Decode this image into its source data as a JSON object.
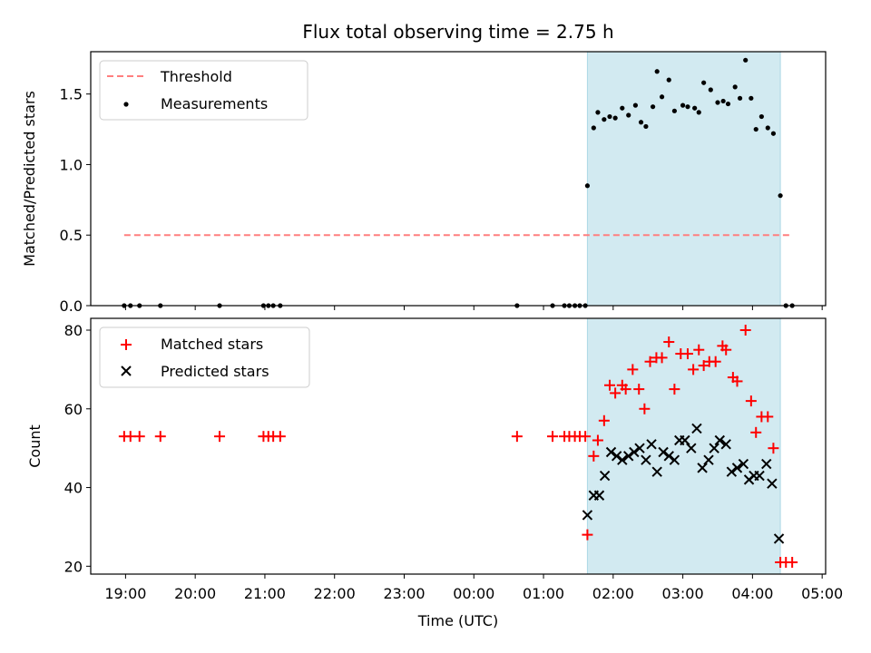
{
  "title": "Flux total observing time = 2.75 h",
  "colors": {
    "threshold": "#ff7f7f",
    "measurement": "#000000",
    "matched": "#ff0000",
    "predicted": "#000000",
    "shade": "#add8e6"
  },
  "chart_data": [
    {
      "type": "scatter",
      "panel": "top",
      "ylabel": "Matched/Predicted stars",
      "xlim_hours": [
        18.5,
        29.05
      ],
      "ylim": [
        0,
        1.8
      ],
      "yticks": [
        {
          "v": 0,
          "label": "0.0"
        },
        {
          "v": 0.5,
          "label": "0.5"
        },
        {
          "v": 1.0,
          "label": "1.0"
        },
        {
          "v": 1.5,
          "label": "1.5"
        }
      ],
      "shaded_x_hours": [
        25.63,
        28.4
      ],
      "threshold": {
        "name": "Threshold",
        "y": 0.5,
        "x_hours": [
          18.98,
          28.57
        ]
      },
      "series": [
        {
          "name": "Measurements",
          "marker": "dot",
          "points": [
            [
              18.98,
              0
            ],
            [
              19.07,
              0
            ],
            [
              19.2,
              0
            ],
            [
              19.5,
              0
            ],
            [
              20.35,
              0
            ],
            [
              20.98,
              0
            ],
            [
              21.05,
              0
            ],
            [
              21.12,
              0
            ],
            [
              21.22,
              0
            ],
            [
              24.62,
              0
            ],
            [
              25.13,
              0
            ],
            [
              25.3,
              0
            ],
            [
              25.37,
              0
            ],
            [
              25.45,
              0
            ],
            [
              25.52,
              0
            ],
            [
              25.6,
              0
            ],
            [
              25.63,
              0.85
            ],
            [
              25.72,
              1.26
            ],
            [
              25.78,
              1.37
            ],
            [
              25.87,
              1.32
            ],
            [
              25.95,
              1.34
            ],
            [
              26.03,
              1.33
            ],
            [
              26.13,
              1.4
            ],
            [
              26.22,
              1.35
            ],
            [
              26.32,
              1.42
            ],
            [
              26.4,
              1.3
            ],
            [
              26.47,
              1.27
            ],
            [
              26.57,
              1.41
            ],
            [
              26.63,
              1.66
            ],
            [
              26.7,
              1.48
            ],
            [
              26.8,
              1.6
            ],
            [
              26.88,
              1.38
            ],
            [
              27.0,
              1.42
            ],
            [
              27.07,
              1.41
            ],
            [
              27.17,
              1.4
            ],
            [
              27.23,
              1.37
            ],
            [
              27.3,
              1.58
            ],
            [
              27.4,
              1.53
            ],
            [
              27.5,
              1.44
            ],
            [
              27.58,
              1.45
            ],
            [
              27.65,
              1.43
            ],
            [
              27.75,
              1.55
            ],
            [
              27.82,
              1.47
            ],
            [
              27.9,
              1.74
            ],
            [
              27.98,
              1.47
            ],
            [
              28.05,
              1.25
            ],
            [
              28.13,
              1.34
            ],
            [
              28.22,
              1.26
            ],
            [
              28.3,
              1.22
            ],
            [
              28.4,
              0.78
            ],
            [
              28.48,
              0
            ],
            [
              28.57,
              0
            ]
          ]
        }
      ]
    },
    {
      "type": "scatter",
      "panel": "bottom",
      "ylabel": "Count",
      "xlabel": "Time (UTC)",
      "xlim_hours": [
        18.5,
        29.05
      ],
      "ylim": [
        18,
        83
      ],
      "yticks": [
        {
          "v": 20,
          "label": "20"
        },
        {
          "v": 40,
          "label": "40"
        },
        {
          "v": 60,
          "label": "60"
        },
        {
          "v": 80,
          "label": "80"
        }
      ],
      "xticks": [
        {
          "v": 19,
          "label": "19:00"
        },
        {
          "v": 20,
          "label": "20:00"
        },
        {
          "v": 21,
          "label": "21:00"
        },
        {
          "v": 22,
          "label": "22:00"
        },
        {
          "v": 23,
          "label": "23:00"
        },
        {
          "v": 24,
          "label": "00:00"
        },
        {
          "v": 25,
          "label": "01:00"
        },
        {
          "v": 26,
          "label": "02:00"
        },
        {
          "v": 27,
          "label": "03:00"
        },
        {
          "v": 28,
          "label": "04:00"
        },
        {
          "v": 29,
          "label": "05:00"
        }
      ],
      "shaded_x_hours": [
        25.63,
        28.4
      ],
      "series": [
        {
          "name": "Matched stars",
          "marker": "plus",
          "points": [
            [
              18.98,
              53
            ],
            [
              19.07,
              53
            ],
            [
              19.2,
              53
            ],
            [
              19.5,
              53
            ],
            [
              20.35,
              53
            ],
            [
              20.98,
              53
            ],
            [
              21.05,
              53
            ],
            [
              21.12,
              53
            ],
            [
              21.22,
              53
            ],
            [
              24.62,
              53
            ],
            [
              25.13,
              53
            ],
            [
              25.3,
              53
            ],
            [
              25.37,
              53
            ],
            [
              25.45,
              53
            ],
            [
              25.52,
              53
            ],
            [
              25.6,
              53
            ],
            [
              25.63,
              28
            ],
            [
              25.72,
              48
            ],
            [
              25.78,
              52
            ],
            [
              25.87,
              57
            ],
            [
              25.95,
              66
            ],
            [
              26.03,
              64
            ],
            [
              26.13,
              66
            ],
            [
              26.18,
              65
            ],
            [
              26.28,
              70
            ],
            [
              26.37,
              65
            ],
            [
              26.45,
              60
            ],
            [
              26.53,
              72
            ],
            [
              26.62,
              73
            ],
            [
              26.7,
              73
            ],
            [
              26.8,
              77
            ],
            [
              26.88,
              65
            ],
            [
              26.97,
              74
            ],
            [
              27.07,
              74
            ],
            [
              27.15,
              70
            ],
            [
              27.23,
              75
            ],
            [
              27.3,
              71
            ],
            [
              27.38,
              72
            ],
            [
              27.47,
              72
            ],
            [
              27.57,
              76
            ],
            [
              27.62,
              75
            ],
            [
              27.72,
              68
            ],
            [
              27.78,
              67
            ],
            [
              27.9,
              80
            ],
            [
              27.98,
              62
            ],
            [
              28.05,
              54
            ],
            [
              28.13,
              58
            ],
            [
              28.22,
              58
            ],
            [
              28.3,
              50
            ],
            [
              28.4,
              21
            ],
            [
              28.48,
              21
            ],
            [
              28.57,
              21
            ]
          ]
        },
        {
          "name": "Predicted stars",
          "marker": "x",
          "points": [
            [
              25.63,
              33
            ],
            [
              25.72,
              38
            ],
            [
              25.8,
              38
            ],
            [
              25.88,
              43
            ],
            [
              25.97,
              49
            ],
            [
              26.05,
              48
            ],
            [
              26.13,
              47
            ],
            [
              26.22,
              48
            ],
            [
              26.3,
              49
            ],
            [
              26.38,
              50
            ],
            [
              26.47,
              47
            ],
            [
              26.55,
              51
            ],
            [
              26.63,
              44
            ],
            [
              26.72,
              49
            ],
            [
              26.8,
              48
            ],
            [
              26.88,
              47
            ],
            [
              26.95,
              52
            ],
            [
              27.03,
              52
            ],
            [
              27.12,
              50
            ],
            [
              27.2,
              55
            ],
            [
              27.28,
              45
            ],
            [
              27.37,
              47
            ],
            [
              27.45,
              50
            ],
            [
              27.53,
              52
            ],
            [
              27.62,
              51
            ],
            [
              27.7,
              44
            ],
            [
              27.78,
              45
            ],
            [
              27.87,
              46
            ],
            [
              27.95,
              42
            ],
            [
              28.02,
              43
            ],
            [
              28.1,
              43
            ],
            [
              28.2,
              46
            ],
            [
              28.28,
              41
            ],
            [
              28.38,
              27
            ]
          ]
        }
      ]
    }
  ]
}
